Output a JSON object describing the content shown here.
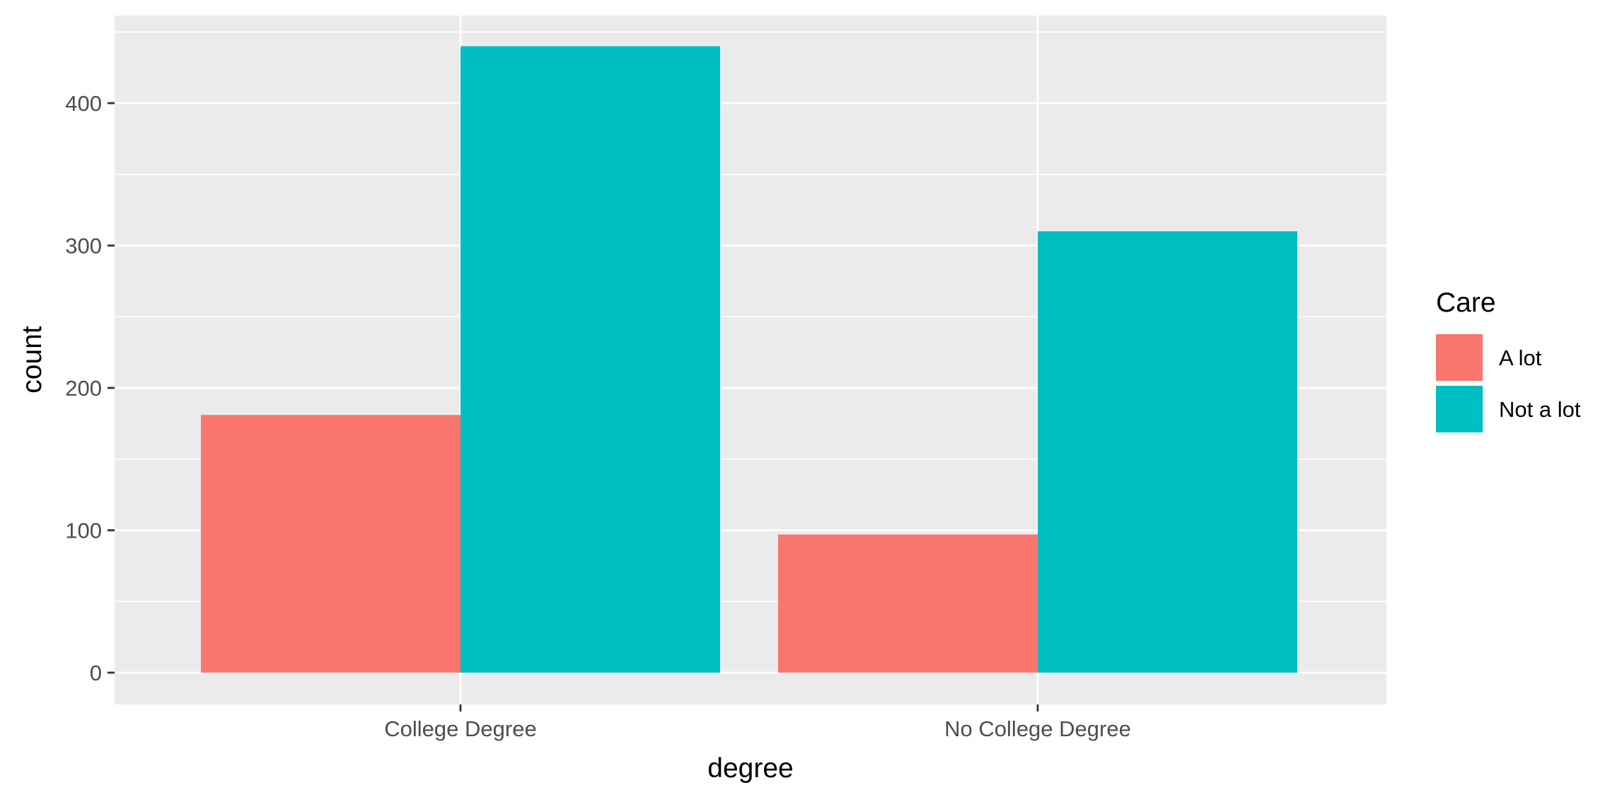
{
  "chart_data": {
    "type": "bar",
    "xlabel": "degree",
    "ylabel": "count",
    "categories": [
      "College Degree",
      "No College Degree"
    ],
    "series": [
      {
        "name": "A lot",
        "values": [
          181,
          97
        ],
        "color": "#F8766D"
      },
      {
        "name": "Not a lot",
        "values": [
          440,
          310
        ],
        "color": "#00BFC4"
      }
    ],
    "ylim": [
      -22,
      462
    ],
    "yticks": [
      0,
      100,
      200,
      300,
      400
    ],
    "y_minor_ticks": [
      50,
      150,
      250,
      350,
      450
    ],
    "grid": true,
    "legend": {
      "title": "Care",
      "position": "right"
    },
    "panel_background": "#EBEBEB",
    "grid_color": "#FFFFFF"
  }
}
